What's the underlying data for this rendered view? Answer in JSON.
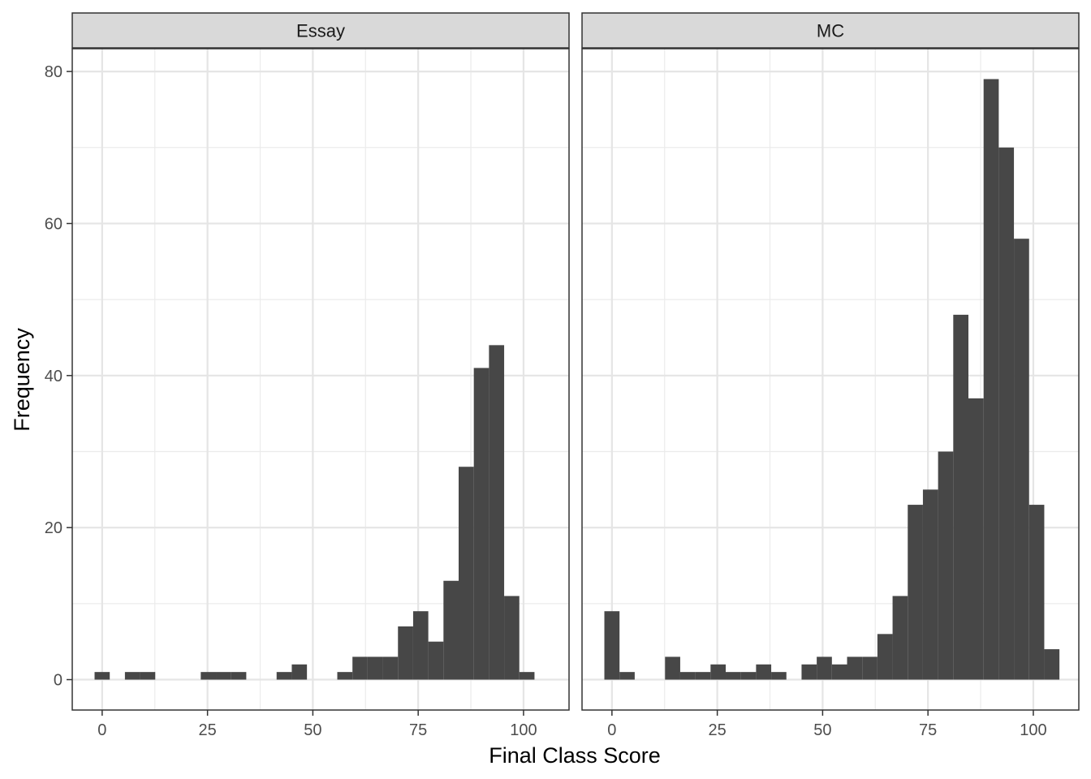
{
  "chart_data": {
    "type": "bar",
    "chart_kind": "faceted histogram",
    "xlabel": "Final Class Score",
    "ylabel": "Frequency",
    "xlim": [
      -7.1,
      110.8
    ],
    "ylim": [
      -4,
      83
    ],
    "x_ticks": [
      0,
      25,
      50,
      75,
      100
    ],
    "y_ticks": [
      0,
      20,
      40,
      60,
      80
    ],
    "grid": true,
    "bin_width": 3.6,
    "bar_color": "#474747",
    "facets": [
      {
        "label": "Essay",
        "bins": [
          {
            "x": 0.0,
            "count": 1
          },
          {
            "x": 3.6,
            "count": 0
          },
          {
            "x": 7.2,
            "count": 1
          },
          {
            "x": 10.8,
            "count": 1
          },
          {
            "x": 14.4,
            "count": 0
          },
          {
            "x": 18.0,
            "count": 0
          },
          {
            "x": 21.6,
            "count": 0
          },
          {
            "x": 25.2,
            "count": 1
          },
          {
            "x": 28.8,
            "count": 1
          },
          {
            "x": 32.4,
            "count": 1
          },
          {
            "x": 36.0,
            "count": 0
          },
          {
            "x": 39.6,
            "count": 0
          },
          {
            "x": 43.2,
            "count": 1
          },
          {
            "x": 46.8,
            "count": 2
          },
          {
            "x": 50.4,
            "count": 0
          },
          {
            "x": 54.0,
            "count": 0
          },
          {
            "x": 57.6,
            "count": 1
          },
          {
            "x": 61.2,
            "count": 3
          },
          {
            "x": 64.8,
            "count": 3
          },
          {
            "x": 68.4,
            "count": 3
          },
          {
            "x": 72.0,
            "count": 7
          },
          {
            "x": 75.6,
            "count": 9
          },
          {
            "x": 79.2,
            "count": 5
          },
          {
            "x": 82.8,
            "count": 13
          },
          {
            "x": 86.4,
            "count": 28
          },
          {
            "x": 90.0,
            "count": 41
          },
          {
            "x": 93.6,
            "count": 44
          },
          {
            "x": 97.2,
            "count": 11
          },
          {
            "x": 100.8,
            "count": 1
          }
        ]
      },
      {
        "label": "MC",
        "bins": [
          {
            "x": 0.0,
            "count": 9
          },
          {
            "x": 3.6,
            "count": 1
          },
          {
            "x": 7.2,
            "count": 0
          },
          {
            "x": 10.8,
            "count": 0
          },
          {
            "x": 14.4,
            "count": 3
          },
          {
            "x": 18.0,
            "count": 1
          },
          {
            "x": 21.6,
            "count": 1
          },
          {
            "x": 25.2,
            "count": 2
          },
          {
            "x": 28.8,
            "count": 1
          },
          {
            "x": 32.4,
            "count": 1
          },
          {
            "x": 36.0,
            "count": 2
          },
          {
            "x": 39.6,
            "count": 1
          },
          {
            "x": 43.2,
            "count": 0
          },
          {
            "x": 46.8,
            "count": 2
          },
          {
            "x": 50.4,
            "count": 3
          },
          {
            "x": 54.0,
            "count": 2
          },
          {
            "x": 57.6,
            "count": 3
          },
          {
            "x": 61.2,
            "count": 3
          },
          {
            "x": 64.8,
            "count": 6
          },
          {
            "x": 68.4,
            "count": 11
          },
          {
            "x": 72.0,
            "count": 23
          },
          {
            "x": 75.6,
            "count": 25
          },
          {
            "x": 79.2,
            "count": 30
          },
          {
            "x": 82.8,
            "count": 48
          },
          {
            "x": 86.4,
            "count": 37
          },
          {
            "x": 90.0,
            "count": 79
          },
          {
            "x": 93.6,
            "count": 70
          },
          {
            "x": 97.2,
            "count": 58
          },
          {
            "x": 100.8,
            "count": 23
          },
          {
            "x": 104.4,
            "count": 4
          }
        ]
      }
    ]
  }
}
